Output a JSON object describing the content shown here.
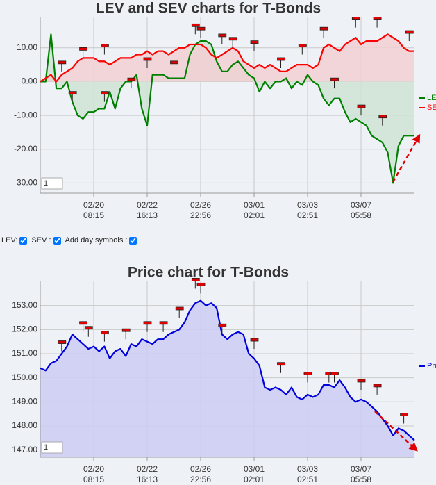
{
  "chart_data": [
    {
      "type": "area",
      "title": "LEV and SEV charts for T-Bonds",
      "x": [
        0,
        1,
        2,
        3,
        4,
        5,
        6,
        7,
        8,
        9,
        10,
        11,
        12,
        13,
        14,
        15,
        16,
        17,
        18,
        19,
        20,
        21,
        22,
        23,
        24,
        25,
        26,
        27,
        28,
        29,
        30,
        31,
        32,
        33,
        34,
        35,
        36,
        37,
        38,
        39,
        40,
        41,
        42,
        43,
        44,
        45,
        46,
        47,
        48,
        49,
        50,
        51,
        52,
        53,
        54,
        55,
        56,
        57,
        58,
        59,
        60,
        61,
        62,
        63,
        64,
        65,
        66,
        67,
        68,
        69,
        70
      ],
      "series": [
        {
          "name": "LEV",
          "color": "#008000",
          "fill": "#cfe3d3",
          "values": [
            0,
            0,
            14,
            -2,
            -2,
            0,
            -6,
            -10,
            -11,
            -9,
            -9,
            -8,
            -8,
            -3,
            -8,
            -2,
            0,
            0,
            2,
            -8,
            -13,
            2,
            2,
            2,
            1,
            1,
            1,
            1,
            8,
            11,
            12,
            12,
            11,
            6,
            3,
            3,
            5,
            6,
            4,
            2,
            1,
            -3,
            0,
            -2,
            0,
            0,
            1,
            -2,
            0,
            -1,
            2,
            0,
            -1,
            -5,
            -7,
            -5,
            -5,
            -9,
            -12,
            -11,
            -12,
            -13,
            -16,
            -17,
            -18,
            -21,
            -30,
            -19,
            -16,
            -16,
            -16
          ]
        },
        {
          "name": "SEV",
          "color": "#ff0000",
          "fill": "#f2d0d2",
          "values": [
            0,
            1,
            2,
            0,
            2,
            3,
            4,
            6,
            7,
            7,
            7,
            6,
            6,
            5,
            6,
            7,
            7,
            7,
            8,
            8,
            9,
            8,
            9,
            9,
            8,
            9,
            10,
            10,
            11,
            11,
            11,
            10,
            8,
            7,
            8,
            9,
            10,
            9,
            6,
            5,
            4,
            5,
            4,
            5,
            4,
            3,
            3,
            4,
            5,
            5,
            5,
            4,
            5,
            10,
            11,
            10,
            9,
            11,
            12,
            13,
            11,
            12,
            12,
            12,
            13,
            14,
            13,
            12,
            10,
            9,
            9
          ]
        }
      ],
      "xlim": [
        0,
        70
      ],
      "xticks": [
        {
          "value": 10,
          "label": [
            "02/20",
            "08:15"
          ]
        },
        {
          "value": 20,
          "label": [
            "02/22",
            "16:13"
          ]
        },
        {
          "value": 30,
          "label": [
            "02/26",
            "22:56"
          ]
        },
        {
          "value": 40,
          "label": [
            "03/01",
            "02:01"
          ]
        },
        {
          "value": 50,
          "label": [
            "03/03",
            "02:51"
          ]
        },
        {
          "value": 60,
          "label": [
            "03/07",
            "05:58"
          ]
        }
      ],
      "ylim": [
        -33,
        19
      ],
      "yticks": [
        {
          "value": 10,
          "label": "10.00"
        },
        {
          "value": 0,
          "label": "0.00"
        },
        {
          "value": -10,
          "label": "-10.00"
        },
        {
          "value": -20,
          "label": "-20.00"
        },
        {
          "value": -30,
          "label": "-30.00"
        }
      ],
      "grid": true,
      "day_symbols": {
        "x": [
          4,
          8,
          12,
          6,
          12,
          17,
          20,
          25,
          29,
          30,
          34,
          36,
          40,
          45,
          49,
          53,
          55,
          59,
          60,
          63,
          64,
          69
        ],
        "y": [
          3,
          7,
          8,
          -6,
          -6,
          -2,
          4,
          3,
          14,
          13,
          11,
          10,
          9,
          4,
          8,
          13,
          -2,
          16,
          -10,
          16,
          -13,
          12
        ]
      },
      "input_value": "1"
    },
    {
      "type": "area",
      "title": "Price chart for T-Bonds",
      "x": [
        0,
        1,
        2,
        3,
        4,
        5,
        6,
        7,
        8,
        9,
        10,
        11,
        12,
        13,
        14,
        15,
        16,
        17,
        18,
        19,
        20,
        21,
        22,
        23,
        24,
        25,
        26,
        27,
        28,
        29,
        30,
        31,
        32,
        33,
        34,
        35,
        36,
        37,
        38,
        39,
        40,
        41,
        42,
        43,
        44,
        45,
        46,
        47,
        48,
        49,
        50,
        51,
        52,
        53,
        54,
        55,
        56,
        57,
        58,
        59,
        60,
        61,
        62,
        63,
        64,
        65,
        66,
        67,
        68,
        69,
        70
      ],
      "series": [
        {
          "name": "Price",
          "color": "#0000dd",
          "fill": "#ccccf4",
          "values": [
            150.4,
            150.3,
            150.6,
            150.7,
            151.0,
            151.3,
            151.8,
            151.6,
            151.4,
            151.2,
            151.3,
            151.1,
            151.3,
            150.8,
            151.1,
            151.2,
            150.9,
            151.4,
            151.3,
            151.6,
            151.5,
            151.4,
            151.6,
            151.6,
            151.8,
            151.9,
            152.0,
            152.3,
            152.8,
            153.1,
            153.2,
            153.0,
            153.1,
            152.9,
            151.8,
            151.6,
            151.8,
            151.9,
            151.8,
            151.0,
            150.8,
            150.5,
            149.6,
            149.5,
            149.6,
            149.5,
            149.3,
            149.6,
            149.2,
            149.1,
            149.3,
            149.2,
            149.3,
            149.7,
            149.7,
            149.6,
            149.9,
            149.6,
            149.2,
            149.0,
            149.1,
            149.0,
            148.8,
            148.6,
            148.3,
            148.0,
            147.6,
            147.9,
            147.8,
            147.6,
            147.4
          ]
        }
      ],
      "xlim": [
        0,
        70
      ],
      "xticks": [
        {
          "value": 10,
          "label": [
            "02/20",
            "08:15"
          ]
        },
        {
          "value": 20,
          "label": [
            "02/22",
            "16:13"
          ]
        },
        {
          "value": 30,
          "label": [
            "02/26",
            "22:56"
          ]
        },
        {
          "value": 40,
          "label": [
            "03/01",
            "02:01"
          ]
        },
        {
          "value": 50,
          "label": [
            "03/03",
            "02:51"
          ]
        },
        {
          "value": 60,
          "label": [
            "03/07",
            "05:58"
          ]
        }
      ],
      "ylim": [
        146.7,
        154
      ],
      "yticks": [
        {
          "value": 153,
          "label": "153.00"
        },
        {
          "value": 152,
          "label": "152.00"
        },
        {
          "value": 151,
          "label": "151.00"
        },
        {
          "value": 150,
          "label": "150.00"
        },
        {
          "value": 149,
          "label": "149.00"
        },
        {
          "value": 148,
          "label": "148.00"
        },
        {
          "value": 147,
          "label": "147.00"
        }
      ],
      "grid": true,
      "day_symbols": {
        "x": [
          4,
          8,
          9,
          12,
          16,
          20,
          23,
          26,
          29,
          30,
          34,
          40,
          45,
          50,
          54,
          55,
          60,
          63,
          68
        ],
        "y": [
          151.1,
          151.9,
          151.7,
          151.5,
          151.6,
          151.9,
          151.9,
          152.5,
          153.7,
          153.5,
          151.8,
          151.2,
          150.2,
          149.8,
          149.8,
          149.8,
          149.5,
          149.3,
          148.1
        ]
      },
      "input_value": "1"
    }
  ],
  "controls": {
    "lev": "LEV:",
    "sev": "SEV :",
    "day_symbols": "Add day symbols :"
  }
}
